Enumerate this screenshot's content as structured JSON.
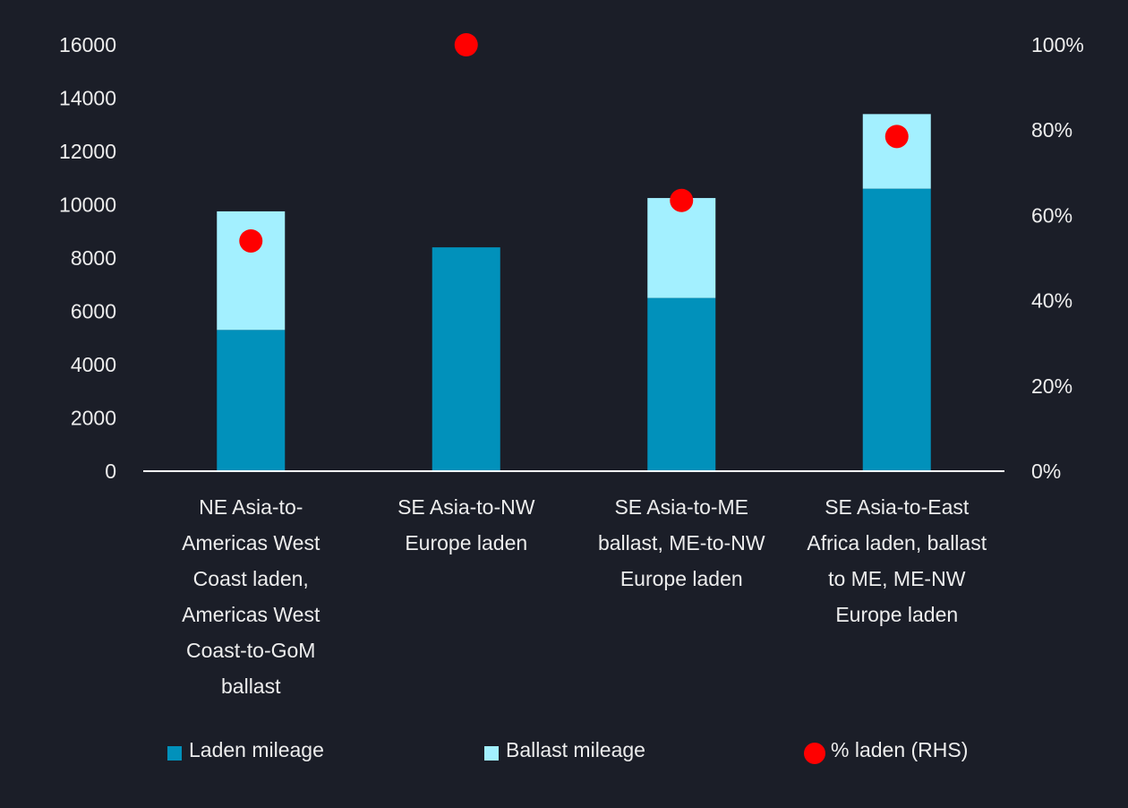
{
  "chart_data": {
    "type": "bar",
    "stacked": true,
    "categories": [
      "NE Asia-to-Americas West Coast laden, Americas West Coast-to-GoM ballast",
      "SE Asia-to-NW Europe laden",
      "SE Asia-to-ME ballast, ME-to-NW Europe laden",
      "SE Asia-to-East Africa laden, ballast to ME, ME-NW Europe laden"
    ],
    "category_lines": [
      [
        "NE Asia-to-",
        "Americas West",
        "Coast laden,",
        "Americas West",
        "Coast-to-GoM",
        "ballast"
      ],
      [
        "SE Asia-to-NW",
        "Europe laden"
      ],
      [
        "SE Asia-to-ME",
        "ballast, ME-to-NW",
        "Europe laden"
      ],
      [
        "SE Asia-to-East",
        "Africa laden, ballast",
        "to ME, ME-NW",
        "Europe laden"
      ]
    ],
    "series": [
      {
        "name": "Laden mileage",
        "axis": "left",
        "kind": "bar",
        "values": [
          5300,
          8400,
          6500,
          10600
        ],
        "color": "#0191bb"
      },
      {
        "name": "Ballast mileage",
        "axis": "left",
        "kind": "bar",
        "values": [
          4450,
          0,
          3750,
          2800
        ],
        "color": "#a3f0ff"
      },
      {
        "name": "% laden (RHS)",
        "axis": "right",
        "kind": "scatter",
        "values": [
          54,
          100,
          63.5,
          78.5
        ],
        "color": "#ff0000"
      }
    ],
    "y_left": {
      "ylim": [
        0,
        16000
      ],
      "ticks": [
        "0",
        "2000",
        "4000",
        "6000",
        "8000",
        "10000",
        "12000",
        "14000",
        "16000"
      ]
    },
    "y_right": {
      "ylim": [
        0,
        100
      ],
      "ticks": [
        "0%",
        "20%",
        "40%",
        "60%",
        "80%",
        "100%"
      ]
    },
    "legend": {
      "position": "bottom"
    }
  },
  "colors": {
    "background": "#1b1e28",
    "text": "#ededed",
    "axis": "#ffffff"
  }
}
